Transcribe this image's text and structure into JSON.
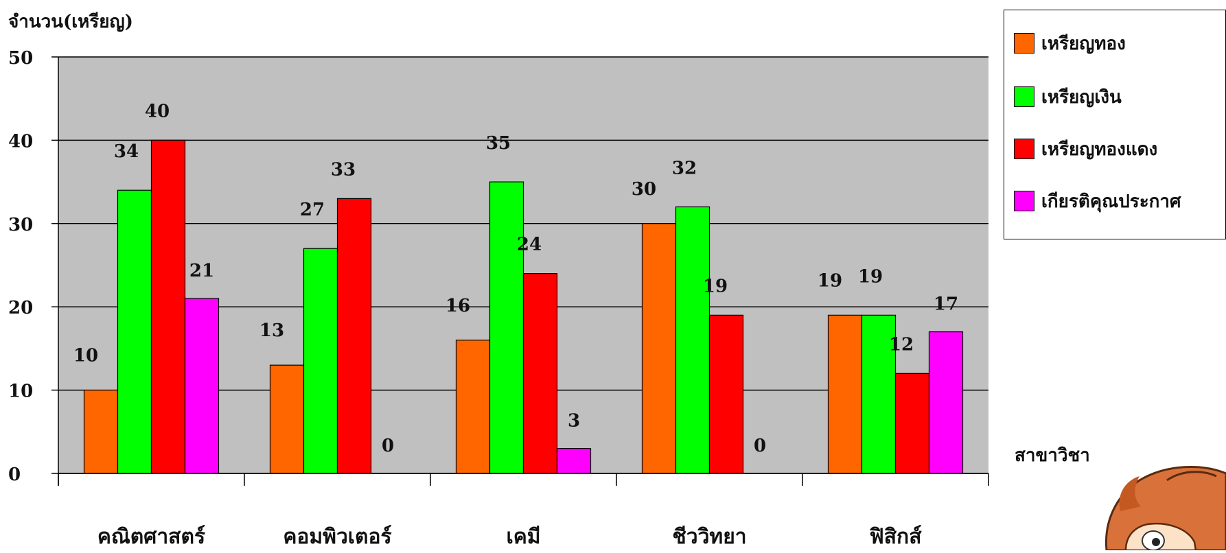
{
  "chart_data": {
    "type": "bar",
    "title": "",
    "ylabel": "จำนวน(เหรียญ)",
    "xlabel": "สาขาวิชา",
    "ylim": [
      0,
      50
    ],
    "yticks": [
      "0",
      "10",
      "20",
      "30",
      "40",
      "50"
    ],
    "grid": true,
    "legend_position": "top-right",
    "plot_background": "#C0C0C0",
    "categories": [
      "คณิตศาสตร์",
      "คอมพิวเตอร์",
      "เคมี",
      "ชีววิทยา",
      "ฟิสิกส์"
    ],
    "series": [
      {
        "name": "เหรียญทอง",
        "color": "#FF6600",
        "values": [
          10,
          13,
          16,
          30,
          19
        ]
      },
      {
        "name": "เหรียญเงิน",
        "color": "#00FF00",
        "values": [
          34,
          27,
          35,
          32,
          19
        ]
      },
      {
        "name": "เหรียญทองแดง",
        "color": "#FF0000",
        "values": [
          40,
          33,
          24,
          19,
          12
        ]
      },
      {
        "name": "เกียรติคุณประกาศ",
        "color": "#FF00FF",
        "values": [
          21,
          0,
          3,
          0,
          17
        ]
      }
    ]
  },
  "decoration": {
    "icon": "cartoon-boy-icon"
  }
}
